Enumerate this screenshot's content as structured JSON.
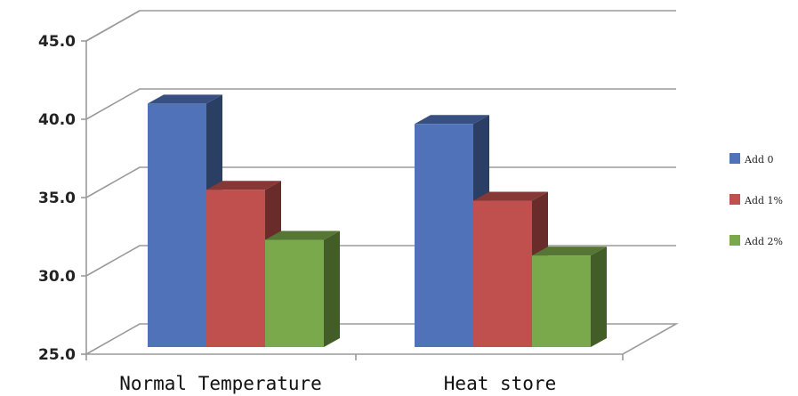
{
  "chart_data": {
    "type": "bar",
    "title": "",
    "xlabel": "",
    "ylabel": "",
    "categories": [
      "Normal Temperature",
      "Heat store"
    ],
    "series": [
      {
        "name": "Add 0",
        "values": [
          41.0,
          39.7
        ],
        "color": "#4f72b8"
      },
      {
        "name": "Add 1%",
        "values": [
          35.5,
          34.8
        ],
        "color": "#c0504d"
      },
      {
        "name": "Add 2%",
        "values": [
          32.3,
          31.3
        ],
        "color": "#79a94b"
      }
    ],
    "ylim": [
      25.0,
      45.0
    ],
    "yticks": [
      "25.0",
      "30.0",
      "35.0",
      "40.0",
      "45.0"
    ],
    "grid": true,
    "legend_position": "right",
    "style": "3d-clustered-column"
  }
}
